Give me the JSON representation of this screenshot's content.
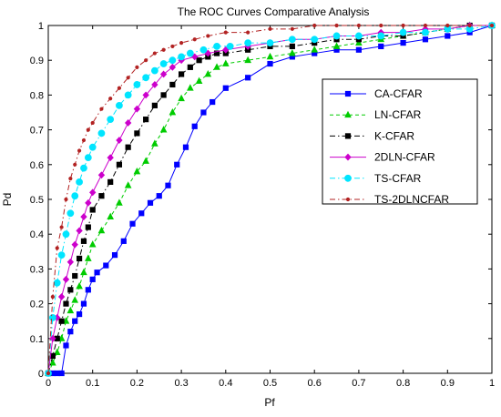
{
  "chart_data": {
    "type": "line",
    "title": "The ROC Curves Comparative Analysis",
    "xlabel": "Pf",
    "ylabel": "Pd",
    "xlim": [
      0,
      1
    ],
    "ylim": [
      0,
      1
    ],
    "grid": false,
    "legend_position": "right",
    "xticks": [
      "0",
      "0.1",
      "0.2",
      "0.3",
      "0.4",
      "0.5",
      "0.6",
      "0.7",
      "0.8",
      "0.9",
      "1"
    ],
    "yticks": [
      "0",
      "0.1",
      "0.2",
      "0.3",
      "0.4",
      "0.5",
      "0.6",
      "0.7",
      "0.8",
      "0.9",
      "1"
    ],
    "series": [
      {
        "name": "CA-CFAR",
        "color": "#0000ff",
        "marker": "square",
        "linestyle": "solid",
        "x": [
          0,
          0.01,
          0.02,
          0.03,
          0.04,
          0.05,
          0.06,
          0.07,
          0.08,
          0.09,
          0.1,
          0.11,
          0.13,
          0.15,
          0.17,
          0.19,
          0.21,
          0.23,
          0.25,
          0.27,
          0.29,
          0.31,
          0.33,
          0.35,
          0.37,
          0.4,
          0.45,
          0.5,
          0.55,
          0.6,
          0.65,
          0.7,
          0.75,
          0.8,
          0.85,
          0.9,
          0.95,
          1
        ],
        "y": [
          0,
          0,
          0,
          0,
          0.08,
          0.12,
          0.15,
          0.17,
          0.2,
          0.24,
          0.27,
          0.29,
          0.31,
          0.34,
          0.38,
          0.43,
          0.46,
          0.49,
          0.51,
          0.54,
          0.6,
          0.65,
          0.71,
          0.75,
          0.78,
          0.82,
          0.85,
          0.89,
          0.91,
          0.92,
          0.93,
          0.93,
          0.94,
          0.95,
          0.96,
          0.97,
          0.98,
          1
        ]
      },
      {
        "name": "LN-CFAR",
        "color": "#00cc00",
        "marker": "triangle",
        "linestyle": "dashed",
        "x": [
          0,
          0.01,
          0.02,
          0.03,
          0.04,
          0.05,
          0.06,
          0.07,
          0.08,
          0.09,
          0.1,
          0.12,
          0.14,
          0.16,
          0.18,
          0.2,
          0.22,
          0.24,
          0.26,
          0.28,
          0.3,
          0.32,
          0.34,
          0.36,
          0.38,
          0.4,
          0.45,
          0.5,
          0.55,
          0.6,
          0.65,
          0.7,
          0.75,
          0.8,
          0.85,
          0.9,
          0.95,
          1
        ],
        "y": [
          0,
          0.03,
          0.06,
          0.1,
          0.15,
          0.18,
          0.21,
          0.25,
          0.29,
          0.33,
          0.37,
          0.41,
          0.45,
          0.49,
          0.54,
          0.58,
          0.61,
          0.66,
          0.7,
          0.75,
          0.79,
          0.82,
          0.84,
          0.86,
          0.88,
          0.89,
          0.9,
          0.91,
          0.92,
          0.93,
          0.94,
          0.95,
          0.96,
          0.97,
          0.98,
          0.99,
          1,
          1
        ]
      },
      {
        "name": "K-CFAR",
        "color": "#000000",
        "marker": "square",
        "linestyle": "dashdot",
        "x": [
          0,
          0.01,
          0.02,
          0.03,
          0.04,
          0.05,
          0.06,
          0.07,
          0.08,
          0.09,
          0.1,
          0.12,
          0.14,
          0.16,
          0.18,
          0.2,
          0.22,
          0.24,
          0.26,
          0.28,
          0.3,
          0.32,
          0.34,
          0.36,
          0.38,
          0.4,
          0.45,
          0.5,
          0.55,
          0.6,
          0.65,
          0.7,
          0.75,
          0.8,
          0.85,
          0.9,
          0.95,
          1
        ],
        "y": [
          0,
          0.05,
          0.1,
          0.15,
          0.2,
          0.24,
          0.28,
          0.33,
          0.38,
          0.42,
          0.47,
          0.51,
          0.55,
          0.6,
          0.65,
          0.69,
          0.73,
          0.77,
          0.8,
          0.83,
          0.86,
          0.88,
          0.9,
          0.91,
          0.92,
          0.92,
          0.93,
          0.94,
          0.94,
          0.95,
          0.96,
          0.96,
          0.97,
          0.97,
          0.98,
          0.99,
          1,
          1
        ]
      },
      {
        "name": "2DLN-CFAR",
        "color": "#cc00cc",
        "marker": "diamond",
        "linestyle": "solid",
        "x": [
          0,
          0.01,
          0.02,
          0.03,
          0.04,
          0.05,
          0.06,
          0.07,
          0.08,
          0.09,
          0.1,
          0.12,
          0.14,
          0.16,
          0.18,
          0.2,
          0.22,
          0.24,
          0.26,
          0.28,
          0.3,
          0.33,
          0.36,
          0.4,
          0.45,
          0.5,
          0.55,
          0.6,
          0.65,
          0.7,
          0.75,
          0.8,
          0.85,
          0.9,
          0.95,
          1
        ],
        "y": [
          0,
          0.1,
          0.16,
          0.22,
          0.27,
          0.32,
          0.37,
          0.41,
          0.45,
          0.49,
          0.52,
          0.57,
          0.62,
          0.67,
          0.72,
          0.76,
          0.8,
          0.83,
          0.86,
          0.88,
          0.9,
          0.91,
          0.92,
          0.93,
          0.94,
          0.95,
          0.96,
          0.96,
          0.97,
          0.97,
          0.98,
          0.98,
          0.99,
          0.99,
          1,
          1
        ]
      },
      {
        "name": "TS-CFAR",
        "color": "#00e5ff",
        "marker": "circle",
        "linestyle": "dashdot",
        "x": [
          0,
          0.01,
          0.02,
          0.03,
          0.04,
          0.05,
          0.06,
          0.07,
          0.08,
          0.09,
          0.1,
          0.12,
          0.14,
          0.16,
          0.18,
          0.2,
          0.22,
          0.24,
          0.26,
          0.28,
          0.3,
          0.32,
          0.35,
          0.38,
          0.41,
          0.45,
          0.5,
          0.55,
          0.6,
          0.65,
          0.7,
          0.75,
          0.8,
          0.85,
          0.9,
          0.95,
          1
        ],
        "y": [
          0,
          0.16,
          0.26,
          0.34,
          0.4,
          0.46,
          0.51,
          0.55,
          0.59,
          0.62,
          0.65,
          0.69,
          0.73,
          0.77,
          0.8,
          0.83,
          0.85,
          0.87,
          0.89,
          0.9,
          0.91,
          0.92,
          0.93,
          0.94,
          0.94,
          0.95,
          0.95,
          0.96,
          0.96,
          0.97,
          0.97,
          0.97,
          0.98,
          0.98,
          0.99,
          0.99,
          1
        ]
      },
      {
        "name": "TS-2DLNCFAR",
        "color": "#b22222",
        "marker": "dot",
        "linestyle": "dashdot",
        "x": [
          0,
          0.01,
          0.02,
          0.03,
          0.04,
          0.05,
          0.06,
          0.07,
          0.08,
          0.09,
          0.1,
          0.12,
          0.14,
          0.16,
          0.18,
          0.2,
          0.22,
          0.24,
          0.26,
          0.28,
          0.3,
          0.33,
          0.36,
          0.4,
          0.45,
          0.5,
          0.55,
          0.6,
          0.65,
          0.7,
          0.75,
          0.8,
          0.85,
          0.9,
          0.95,
          1
        ],
        "y": [
          0,
          0.22,
          0.36,
          0.42,
          0.5,
          0.56,
          0.6,
          0.64,
          0.67,
          0.7,
          0.72,
          0.76,
          0.79,
          0.82,
          0.85,
          0.88,
          0.9,
          0.92,
          0.93,
          0.94,
          0.95,
          0.96,
          0.97,
          0.98,
          0.98,
          0.99,
          0.99,
          1,
          1,
          1,
          1,
          1,
          1,
          1,
          1,
          1
        ]
      }
    ]
  }
}
